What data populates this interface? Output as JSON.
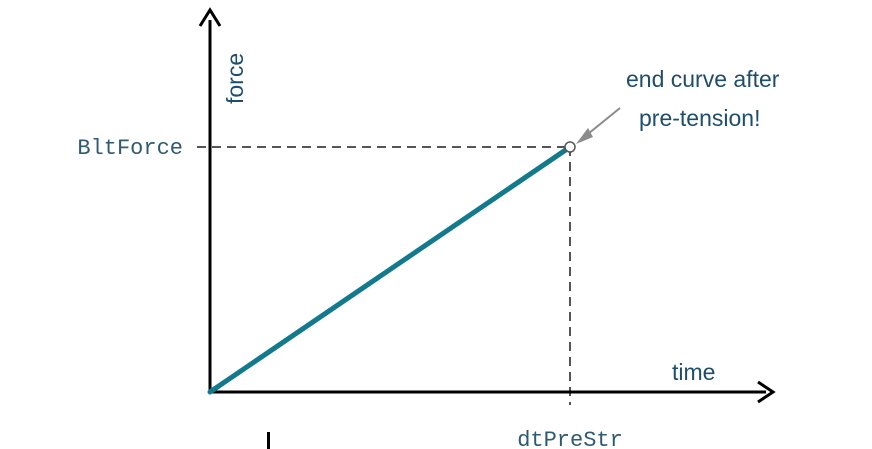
{
  "chart_data": {
    "type": "line",
    "xlabel": "time",
    "ylabel": "force",
    "x_marker_label": "dtPreStr",
    "y_marker_label": "BltForce",
    "series": [
      {
        "x": [
          0,
          1
        ],
        "y": [
          0,
          1
        ]
      }
    ],
    "annotation": {
      "line1": "end curve after",
      "line2": "pre-tension!"
    }
  },
  "colors": {
    "curve": "#127a8c",
    "axis": "#000000",
    "guide": "#555555",
    "annotation_arrow": "#8c8c8c",
    "label_text": "#1f4e6b"
  }
}
